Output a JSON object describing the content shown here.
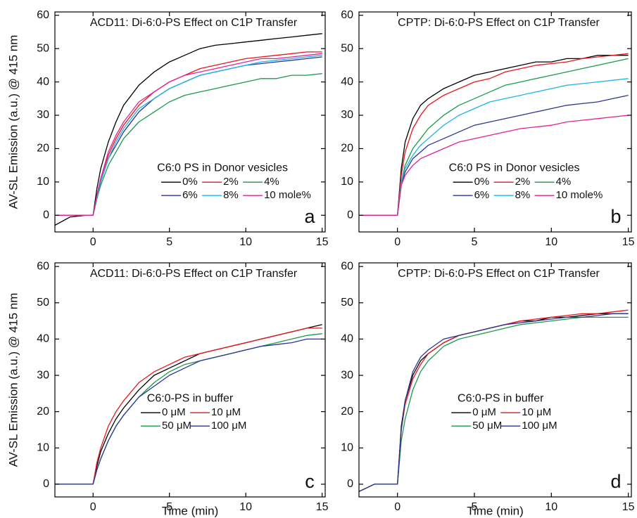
{
  "chart_data": [
    {
      "type": "line",
      "title": "ACD11: Di-6:0-PS Effect on C1P Transfer",
      "panel_label": "a",
      "ylabel": "AV-SL Emission (a.u.) @ 415 nm",
      "legend_title": "C6:0 PS in Donor vesicles",
      "xlim": [
        -2.5,
        15.2
      ],
      "ylim": [
        -5,
        61
      ],
      "xticks": [
        0,
        5,
        10,
        15
      ],
      "yticks": [
        0,
        10,
        20,
        30,
        40,
        50,
        60
      ],
      "x": [
        -2.5,
        -1.5,
        -0.5,
        0,
        0.25,
        0.5,
        1,
        1.5,
        2,
        3,
        4,
        5,
        6,
        7,
        8,
        9,
        10,
        11,
        12,
        13,
        14,
        15
      ],
      "series": [
        {
          "name": "0%",
          "color": "#000000",
          "values": [
            -3,
            -0.5,
            0,
            0,
            8,
            14,
            22,
            28,
            33,
            39,
            43,
            46,
            48,
            50,
            51,
            51.5,
            52,
            52.5,
            53,
            53.5,
            54,
            54.5
          ]
        },
        {
          "name": "2%",
          "color": "#e8161b",
          "values": [
            0,
            0,
            0,
            0,
            6,
            11,
            18,
            23,
            27,
            33,
            37,
            40,
            42,
            44,
            45,
            46,
            47,
            47.5,
            48,
            48.5,
            49,
            49
          ]
        },
        {
          "name": "4%",
          "color": "#1a9a4a",
          "values": [
            0,
            0,
            0,
            0,
            5,
            9,
            15,
            19,
            23,
            28,
            31,
            34,
            36,
            37,
            38,
            39,
            40,
            41,
            41,
            42,
            42,
            42.5
          ]
        },
        {
          "name": "6%",
          "color": "#2b3594",
          "values": [
            0,
            0,
            0,
            0,
            5,
            10,
            17,
            21,
            25,
            31,
            35,
            38,
            40,
            42,
            43,
            44,
            45,
            45.5,
            46,
            46.5,
            47,
            47.5
          ]
        },
        {
          "name": "8%",
          "color": "#1eb4e8",
          "values": [
            0,
            0,
            0,
            0,
            5,
            10,
            17,
            22,
            26,
            32,
            35,
            38,
            40,
            42,
            43,
            44,
            45,
            46,
            46.5,
            47,
            47.5,
            48
          ]
        },
        {
          "name": "10 mole%",
          "color": "#e0239a",
          "values": [
            0,
            0,
            0,
            0,
            6,
            11,
            19,
            24,
            28,
            34,
            37,
            40,
            42,
            43,
            44,
            45,
            46,
            47,
            47,
            47.5,
            48,
            48.5
          ]
        }
      ]
    },
    {
      "type": "line",
      "title": "CPTP: Di-6:0-PS Effect on C1P Transfer",
      "panel_label": "b",
      "legend_title": "C6:0 PS in Donor vesicles",
      "xlim": [
        -2.5,
        15.2
      ],
      "ylim": [
        -5,
        61
      ],
      "xticks": [
        0,
        5,
        10,
        15
      ],
      "yticks": [
        0,
        10,
        20,
        30,
        40,
        50,
        60
      ],
      "x": [
        -2.5,
        -1.5,
        -0.5,
        0,
        0.25,
        0.5,
        1,
        1.5,
        2,
        3,
        4,
        5,
        6,
        7,
        8,
        9,
        10,
        11,
        12,
        13,
        14,
        15
      ],
      "series": [
        {
          "name": "0%",
          "color": "#000000",
          "values": [
            0,
            0,
            0,
            0,
            14,
            22,
            29,
            33,
            35,
            38,
            40,
            42,
            43,
            44,
            45,
            46,
            46,
            47,
            47,
            48,
            48,
            48
          ]
        },
        {
          "name": "2%",
          "color": "#e8161b",
          "values": [
            0,
            0,
            0,
            0,
            12,
            19,
            26,
            30,
            33,
            36,
            38,
            40,
            41,
            43,
            44,
            45,
            45.5,
            46,
            47,
            47.5,
            48,
            48.5
          ]
        },
        {
          "name": "4%",
          "color": "#1a9a4a",
          "values": [
            0,
            0,
            0,
            0,
            10,
            15,
            20,
            23,
            26,
            30,
            33,
            35,
            37,
            39,
            40,
            41,
            42,
            43,
            44,
            45,
            46,
            47
          ]
        },
        {
          "name": "6%",
          "color": "#2b3594",
          "values": [
            0,
            0,
            0,
            0,
            9,
            13,
            17,
            19,
            21,
            23,
            25,
            27,
            28,
            29,
            30,
            31,
            32,
            33,
            33.5,
            34,
            35,
            36
          ]
        },
        {
          "name": "8%",
          "color": "#1eb4e8",
          "values": [
            0,
            0,
            0,
            0,
            10,
            14,
            18,
            21,
            23,
            27,
            30,
            32,
            34,
            35,
            36,
            37,
            38,
            39,
            39.5,
            40,
            40.5,
            41
          ]
        },
        {
          "name": "10 mole%",
          "color": "#e0239a",
          "values": [
            0,
            0,
            0,
            0,
            9,
            12,
            15,
            17,
            18,
            20,
            22,
            23,
            24,
            25,
            26,
            26.5,
            27,
            28,
            28.5,
            29,
            29.5,
            30
          ]
        }
      ]
    },
    {
      "type": "line",
      "title": "ACD11: Di-6:0-PS Effect on C1P Transfer",
      "panel_label": "c",
      "ylabel": "AV-SL Emission (a.u.) @ 415 nm",
      "xlabel": "Time (min)",
      "legend_title": "C6:0-PS in buffer",
      "xlim": [
        -2.5,
        15.2
      ],
      "ylim": [
        -3.5,
        61
      ],
      "xticks": [
        0,
        5,
        10,
        15
      ],
      "yticks": [
        0,
        10,
        20,
        30,
        40,
        50,
        60
      ],
      "x": [
        -2.5,
        -1.5,
        -0.5,
        0,
        0.25,
        0.5,
        1,
        1.5,
        2,
        3,
        4,
        5,
        6,
        7,
        8,
        9,
        10,
        11,
        12,
        13,
        14,
        15
      ],
      "series": [
        {
          "name": "0 μM",
          "color": "#000000",
          "values": [
            0,
            0,
            0,
            0,
            5,
            9,
            14,
            18,
            21,
            26,
            30,
            32,
            34,
            36,
            37,
            38,
            39,
            40,
            41,
            42,
            43,
            44
          ]
        },
        {
          "name": "10 μM",
          "color": "#e8161b",
          "values": [
            0,
            0,
            0,
            0,
            6,
            10,
            16,
            20,
            23,
            28,
            31,
            33,
            35,
            36,
            37,
            38,
            39,
            40,
            41,
            42,
            43,
            43
          ]
        },
        {
          "name": "50 μM",
          "color": "#1a9a4a",
          "values": [
            0,
            0,
            0,
            0,
            4,
            7,
            12,
            16,
            19,
            24,
            28,
            31,
            33,
            34,
            35,
            36,
            37,
            38,
            39,
            40,
            41,
            41.5
          ]
        },
        {
          "name": "100 μM",
          "color": "#2b3594",
          "values": [
            0,
            0,
            0,
            0,
            4,
            7,
            12,
            16,
            19,
            24,
            27,
            30,
            32,
            34,
            35,
            36,
            37,
            38,
            38.5,
            39,
            40,
            40
          ]
        }
      ]
    },
    {
      "type": "line",
      "title": "CPTP: Di-6:0-PS Effect on C1P Transfer",
      "panel_label": "d",
      "xlabel": "Time (min)",
      "legend_title": "C6:0-PS in buffer",
      "xlim": [
        -2.5,
        15.2
      ],
      "ylim": [
        -3.5,
        61
      ],
      "xticks": [
        0,
        5,
        10,
        15
      ],
      "yticks": [
        0,
        10,
        20,
        30,
        40,
        50,
        60
      ],
      "x": [
        -2.5,
        -1.5,
        -0.5,
        0,
        0.25,
        0.5,
        1,
        1.5,
        2,
        3,
        4,
        5,
        6,
        7,
        8,
        9,
        10,
        11,
        12,
        13,
        14,
        15
      ],
      "series": [
        {
          "name": "0 μM",
          "color": "#000000",
          "values": [
            -2,
            0,
            0,
            0,
            16,
            23,
            30,
            34,
            36,
            39,
            41,
            42,
            43,
            44,
            45,
            45,
            46,
            46,
            46.5,
            47,
            47,
            47
          ]
        },
        {
          "name": "10 μM",
          "color": "#e8161b",
          "values": [
            -2,
            0,
            0,
            0,
            15,
            22,
            29,
            33,
            36,
            39,
            41,
            42,
            43,
            44,
            45,
            45.5,
            46,
            46.5,
            47,
            47,
            47.5,
            48
          ]
        },
        {
          "name": "50 μM",
          "color": "#1a9a4a",
          "values": [
            -2,
            0,
            0,
            0,
            12,
            18,
            26,
            31,
            34,
            38,
            40,
            41,
            42,
            43,
            44,
            44.5,
            45,
            45.5,
            46,
            46,
            46,
            46
          ]
        },
        {
          "name": "100 μM",
          "color": "#2b3594",
          "values": [
            -2,
            0,
            0,
            0,
            15,
            23,
            31,
            35,
            37,
            40,
            41,
            42,
            43,
            44,
            44.5,
            45,
            45.5,
            46,
            46,
            46.5,
            47,
            47
          ]
        }
      ]
    }
  ]
}
